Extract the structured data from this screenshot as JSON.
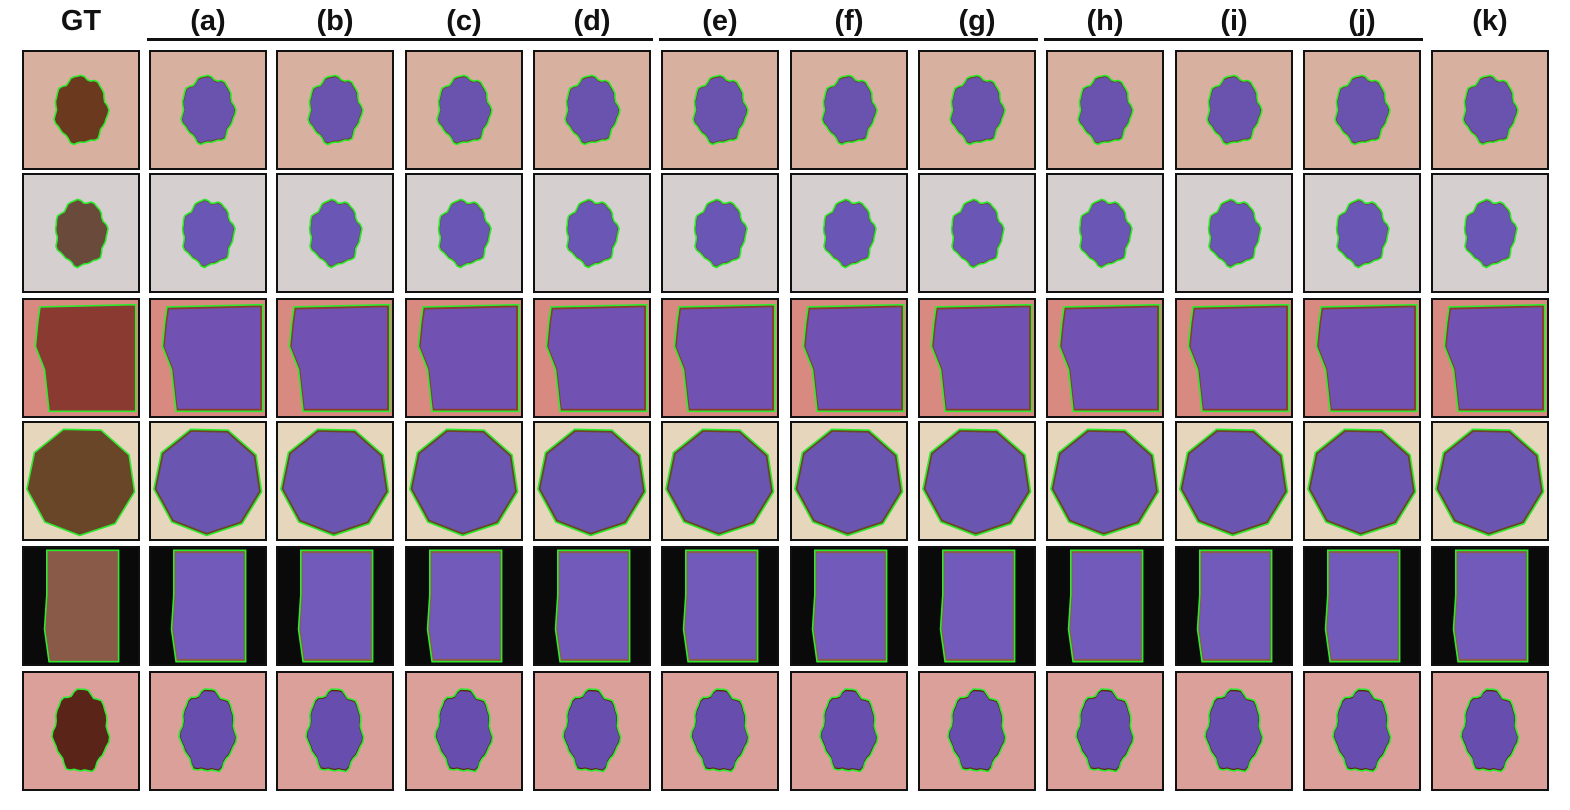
{
  "columns": [
    {
      "label": "GT",
      "kind": "gt"
    },
    {
      "label": "(a)",
      "kind": "pred"
    },
    {
      "label": "(b)",
      "kind": "pred"
    },
    {
      "label": "(c)",
      "kind": "pred"
    },
    {
      "label": "(d)",
      "kind": "pred"
    },
    {
      "label": "(e)",
      "kind": "pred"
    },
    {
      "label": "(f)",
      "kind": "pred"
    },
    {
      "label": "(g)",
      "kind": "pred"
    },
    {
      "label": "(h)",
      "kind": "pred"
    },
    {
      "label": "(i)",
      "kind": "pred"
    },
    {
      "label": "(j)",
      "kind": "pred"
    },
    {
      "label": "(k)",
      "kind": "pred"
    }
  ],
  "groups": [
    {
      "from": "(a)",
      "to": "(d)"
    },
    {
      "from": "(e)",
      "to": "(g)"
    },
    {
      "from": "(h)",
      "to": "(j)"
    }
  ],
  "rows": [
    {
      "skin": "#d8b0a0",
      "lesion": "#6b3a1e",
      "shape": "blob",
      "scale": 0.72
    },
    {
      "skin": "#d6cfd0",
      "lesion": "#6a4a3a",
      "shape": "blob",
      "scale": 0.7
    },
    {
      "skin": "#d98a80",
      "lesion": "#8a3a30",
      "shape": "square",
      "scale": 0.95
    },
    {
      "skin": "#e6d6bc",
      "lesion": "#6a4628",
      "shape": "octagon",
      "scale": 1.0
    },
    {
      "skin": "#0a0a0a",
      "lesion": "#8a5a48",
      "shape": "rect",
      "scale": 1.0
    },
    {
      "skin": "#dba09a",
      "lesion": "#5a2418",
      "shape": "oval",
      "scale": 0.8
    }
  ],
  "colors": {
    "gt_contour": "#2dea2d",
    "prediction_overlay": "#6a5ad8",
    "border": "#111111"
  }
}
